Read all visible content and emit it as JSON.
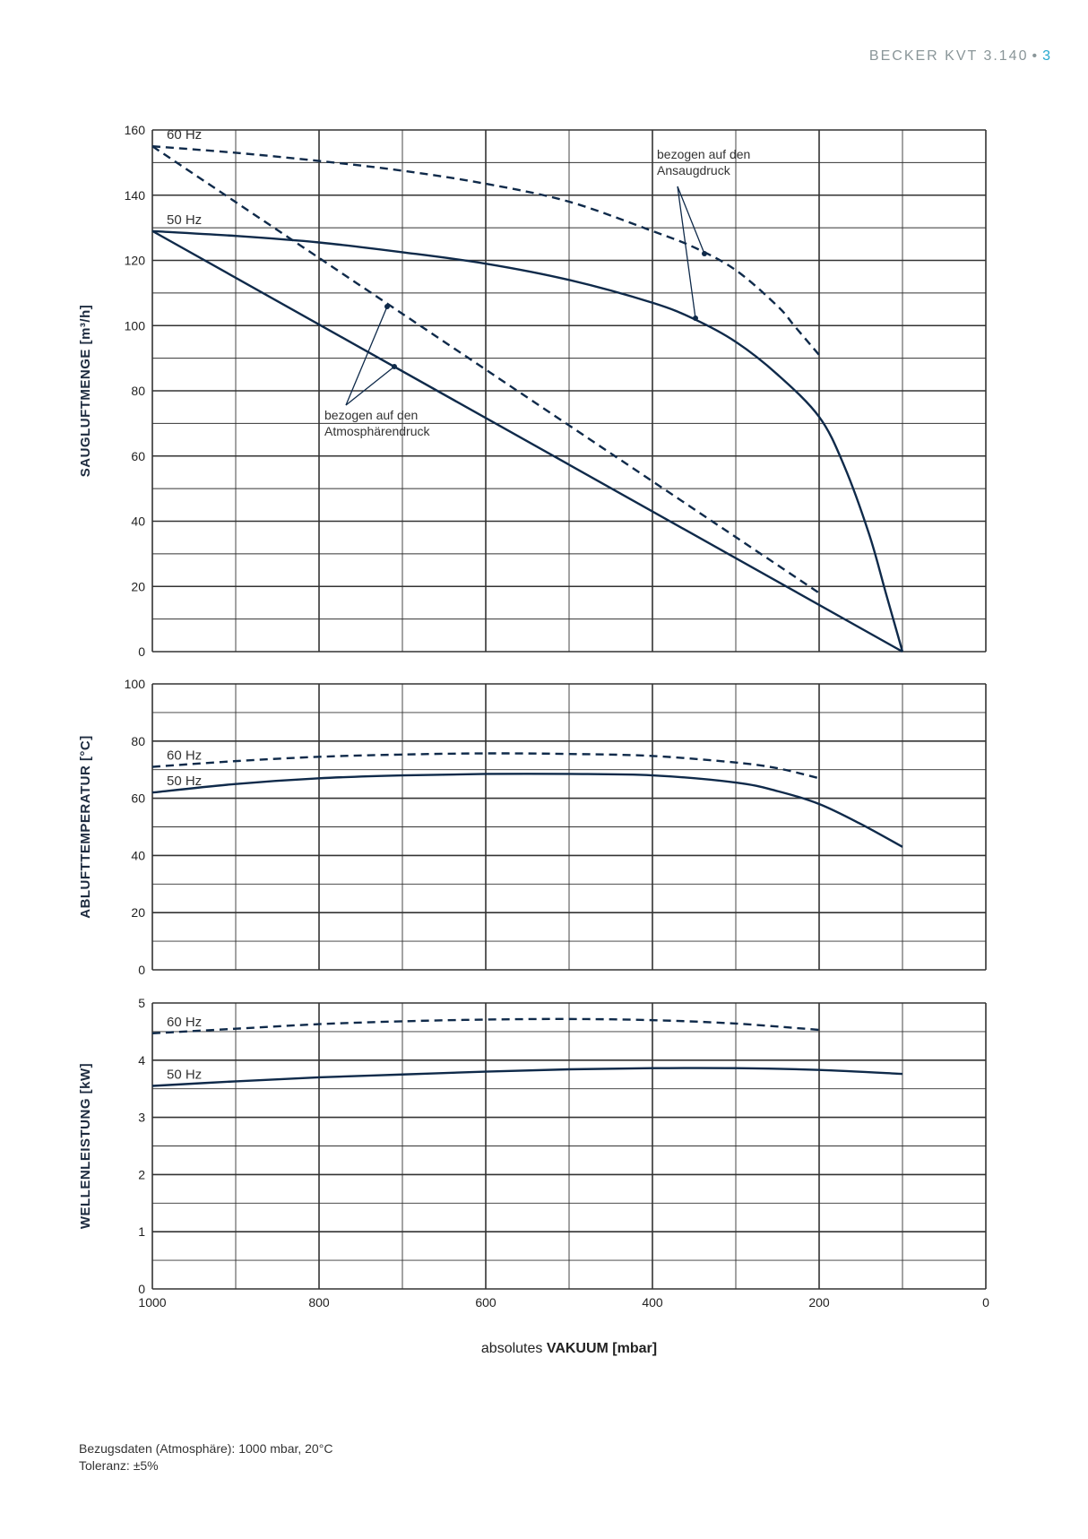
{
  "header": {
    "title": "BECKER KVT 3.140",
    "separator": "•",
    "page_number": "3"
  },
  "colors": {
    "curve": "#0f2a4a",
    "grid": "#333333",
    "header_gray": "#8a9699",
    "page_number": "#27a9cf"
  },
  "xaxis": {
    "label_prefix": "absolutes",
    "label_bold": "VAKUUM  [mbar]",
    "ticks": [
      "1000",
      "800",
      "600",
      "400",
      "200",
      "0"
    ]
  },
  "chart_data": [
    {
      "type": "line",
      "ylabel": "SAUGLUFTMENGE [m³/h]",
      "ylim": [
        0,
        160
      ],
      "yticks": [
        "0",
        "20",
        "40",
        "60",
        "80",
        "100",
        "120",
        "140",
        "160"
      ],
      "xlim": [
        1000,
        0
      ],
      "series": [
        {
          "name": "60 Hz",
          "style": "dashed",
          "x": [
            1000,
            900,
            800,
            700,
            600,
            500,
            400,
            350,
            300,
            250,
            230,
            210,
            200
          ],
          "y": [
            155,
            153,
            150.5,
            147.5,
            143.5,
            138,
            129,
            124,
            117,
            106,
            100,
            94,
            91
          ]
        },
        {
          "name": "50 Hz",
          "style": "solid",
          "x": [
            1000,
            900,
            800,
            700,
            600,
            500,
            400,
            350,
            300,
            250,
            200,
            170,
            140,
            120,
            100
          ],
          "y": [
            129,
            127.5,
            125.5,
            122.5,
            119,
            114,
            107,
            102,
            95,
            85,
            72,
            57,
            36,
            18,
            0
          ]
        },
        {
          "name": "",
          "style": "dashed",
          "x": [
            1000,
            200
          ],
          "y": [
            155,
            18
          ]
        },
        {
          "name": "",
          "style": "solid",
          "x": [
            1000,
            100
          ],
          "y": [
            129,
            0
          ]
        }
      ],
      "annotations": [
        {
          "text_lines": [
            "bezogen auf den",
            "Ansaugdruck"
          ]
        },
        {
          "text_lines": [
            "bezogen auf den",
            "Atmosphärendruck"
          ]
        }
      ]
    },
    {
      "type": "line",
      "ylabel": "ABLUFTTEMPERATUR [°C]",
      "ylim": [
        0,
        100
      ],
      "yticks": [
        "0",
        "20",
        "40",
        "60",
        "80",
        "100"
      ],
      "xlim": [
        1000,
        0
      ],
      "series": [
        {
          "name": "60 Hz",
          "style": "dashed",
          "x": [
            1000,
            900,
            800,
            700,
            600,
            500,
            400,
            300,
            250,
            200
          ],
          "y": [
            71,
            73,
            74.5,
            75.3,
            75.7,
            75.5,
            74.8,
            72.5,
            70.5,
            67
          ]
        },
        {
          "name": "50 Hz",
          "style": "solid",
          "x": [
            1000,
            900,
            800,
            700,
            600,
            500,
            400,
            300,
            250,
            200,
            150,
            100
          ],
          "y": [
            62,
            65,
            67,
            68,
            68.5,
            68.5,
            68,
            65.5,
            62.5,
            58,
            51,
            43
          ]
        }
      ]
    },
    {
      "type": "line",
      "ylabel": "WELLENLEISTUNG [kW]",
      "ylim": [
        0,
        5
      ],
      "yticks": [
        "0",
        "1",
        "2",
        "3",
        "4",
        "5"
      ],
      "xlim": [
        1000,
        0
      ],
      "series": [
        {
          "name": "60 Hz",
          "style": "dashed",
          "x": [
            1000,
            900,
            800,
            700,
            600,
            500,
            400,
            300,
            200
          ],
          "y": [
            4.47,
            4.55,
            4.63,
            4.68,
            4.71,
            4.72,
            4.7,
            4.64,
            4.53
          ]
        },
        {
          "name": "50 Hz",
          "style": "solid",
          "x": [
            1000,
            900,
            800,
            700,
            600,
            500,
            400,
            300,
            200,
            100
          ],
          "y": [
            3.55,
            3.63,
            3.7,
            3.75,
            3.8,
            3.84,
            3.86,
            3.86,
            3.83,
            3.76
          ]
        }
      ]
    }
  ],
  "footer": {
    "line1": "Bezugsdaten (Atmosphäre): 1000 mbar, 20°C",
    "line2": "Toleranz: ±5%"
  }
}
